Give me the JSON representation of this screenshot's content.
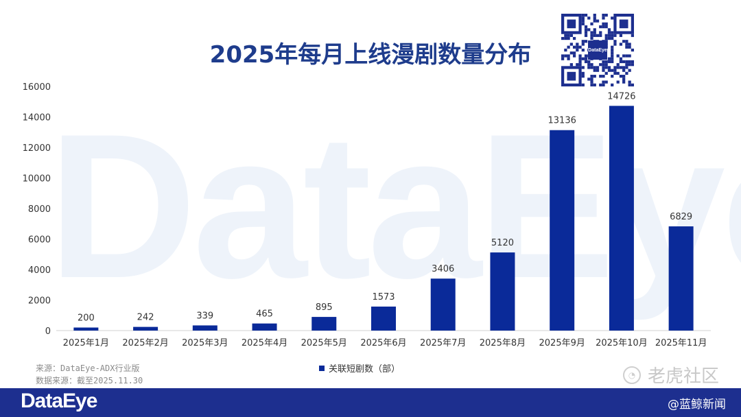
{
  "watermark": "DataEye",
  "qr_logo_text": "DataEye",
  "source_lines": [
    "来源：DataEye-ADX行业版",
    "数据来源：截至2025.11.30"
  ],
  "footer": {
    "logo": "DataEye",
    "credit": "@蓝鲸新闻"
  },
  "overlay_mark": "老虎社区",
  "colors": {
    "bar": "#0a2a99",
    "title": "#1e3c8c",
    "footer": "#1d2f8f"
  },
  "chart_data": {
    "type": "bar",
    "title": "2025年每月上线漫剧数量分布",
    "categories": [
      "2025年1月",
      "2025年2月",
      "2025年3月",
      "2025年4月",
      "2025年5月",
      "2025年6月",
      "2025年7月",
      "2025年8月",
      "2025年9月",
      "2025年10月",
      "2025年11月"
    ],
    "series": [
      {
        "name": "关联短剧数（部）",
        "values": [
          200,
          242,
          339,
          465,
          895,
          1573,
          3406,
          5120,
          13136,
          14726,
          6829
        ]
      }
    ],
    "y_ticks": [
      0,
      2000,
      4000,
      6000,
      8000,
      10000,
      12000,
      14000,
      16000
    ],
    "ylim": [
      0,
      16000
    ],
    "grid": false,
    "legend_position": "bottom-center",
    "data_labels": true
  }
}
